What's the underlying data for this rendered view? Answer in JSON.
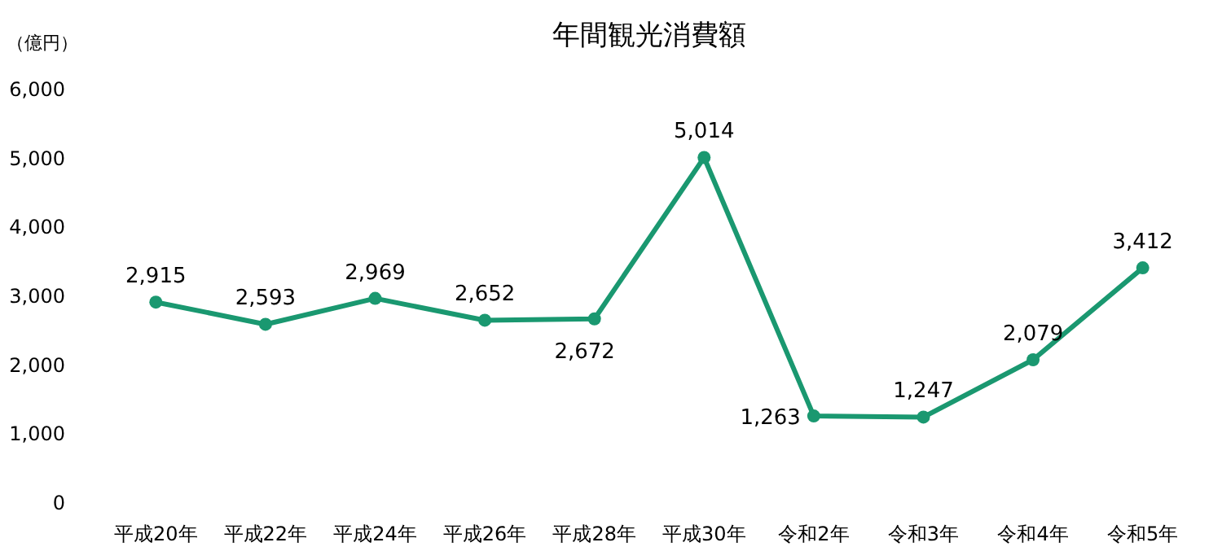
{
  "chart_data": {
    "type": "line",
    "title": "年間観光消費額",
    "ylabel": "（億円）",
    "categories": [
      "平成20年",
      "平成22年",
      "平成24年",
      "平成26年",
      "平成28年",
      "平成30年",
      "令和2年",
      "令和3年",
      "令和4年",
      "令和5年"
    ],
    "series": [
      {
        "color": "#1a9870",
        "values": [
          2915,
          2593,
          2969,
          2652,
          2672,
          5014,
          1263,
          1247,
          2079,
          3412
        ],
        "value_labels": [
          "2,915",
          "2,593",
          "2,969",
          "2,652",
          "2,672",
          "5,014",
          "1,263",
          "1,247",
          "2,079",
          "3,412"
        ]
      }
    ],
    "ylim": [
      0,
      6000
    ],
    "yticks": [
      {
        "value": 0,
        "label": "0"
      },
      {
        "value": 1000,
        "label": "1,000"
      },
      {
        "value": 2000,
        "label": "2,000"
      },
      {
        "value": 3000,
        "label": "3,000"
      },
      {
        "value": 4000,
        "label": "4,000"
      },
      {
        "value": 5000,
        "label": "5,000"
      },
      {
        "value": 6000,
        "label": "6,000"
      }
    ],
    "grid": false,
    "marker": "circle",
    "line_style": "solid"
  }
}
